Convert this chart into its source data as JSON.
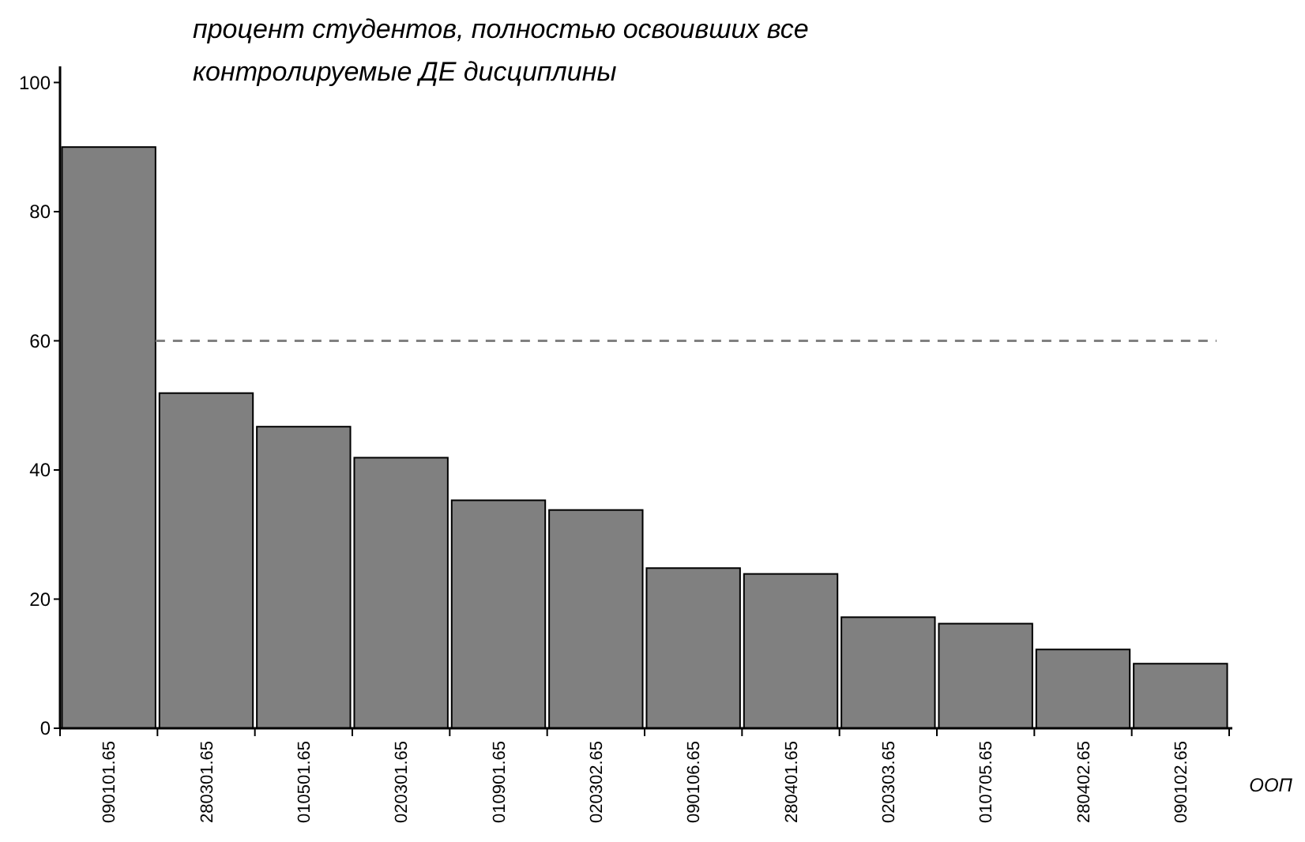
{
  "chart_data": {
    "type": "bar",
    "title": "процент студентов, полностью освоивших все контролируемые ДЕ дисциплины",
    "xlabel": "ООП",
    "categories": [
      "090101.65",
      "280301.65",
      "010501.65",
      "020301.65",
      "010901.65",
      "020302.65",
      "090106.65",
      "280401.65",
      "020303.65",
      "010705.65",
      "280402.65",
      "090102.65"
    ],
    "values": [
      90,
      51.9,
      46.7,
      41.9,
      35.3,
      33.8,
      24.8,
      23.9,
      17.2,
      16.2,
      12.2,
      10
    ],
    "color": "#808080",
    "ylim": [
      0,
      102.5
    ],
    "yticks": [
      0,
      20,
      40,
      60,
      80,
      100
    ],
    "grid": false,
    "ref_lines": [
      {
        "axis": "y",
        "value": 60,
        "color": "#808080",
        "line_style": "dashed"
      }
    ]
  }
}
